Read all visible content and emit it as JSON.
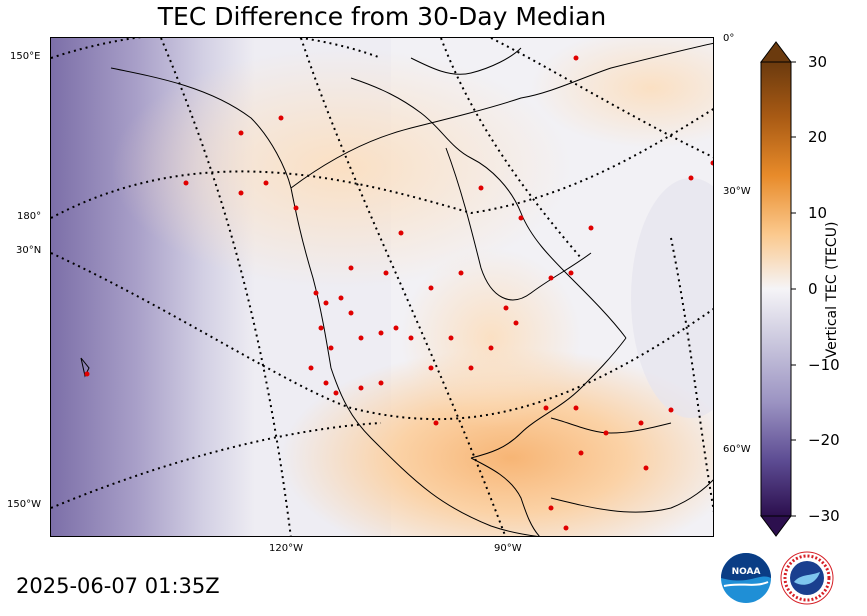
{
  "title": "TEC Difference from 30-Day Median",
  "timestamp": "2025-06-07 01:35Z",
  "map": {
    "lat_lon_labels": {
      "left_150E": "150°E",
      "left_180": "180°",
      "left_30N": "30°N",
      "left_150W": "150°W",
      "bottom_120W": "120°W",
      "bottom_90W": "90°W",
      "right_0": "0°",
      "right_30W": "30°W",
      "right_60W": "60°W"
    }
  },
  "colorbar": {
    "label": "Vertical TEC (TECU)",
    "ticks": [
      "30",
      "20",
      "10",
      "0",
      "−10",
      "−20",
      "−30"
    ],
    "range": [
      -30,
      30
    ],
    "positive_color": "#e8801d",
    "negative_color": "#5a4590"
  },
  "logos": {
    "noaa": "NOAA",
    "nws": "NATIONAL WEATHER SERVICE"
  }
}
